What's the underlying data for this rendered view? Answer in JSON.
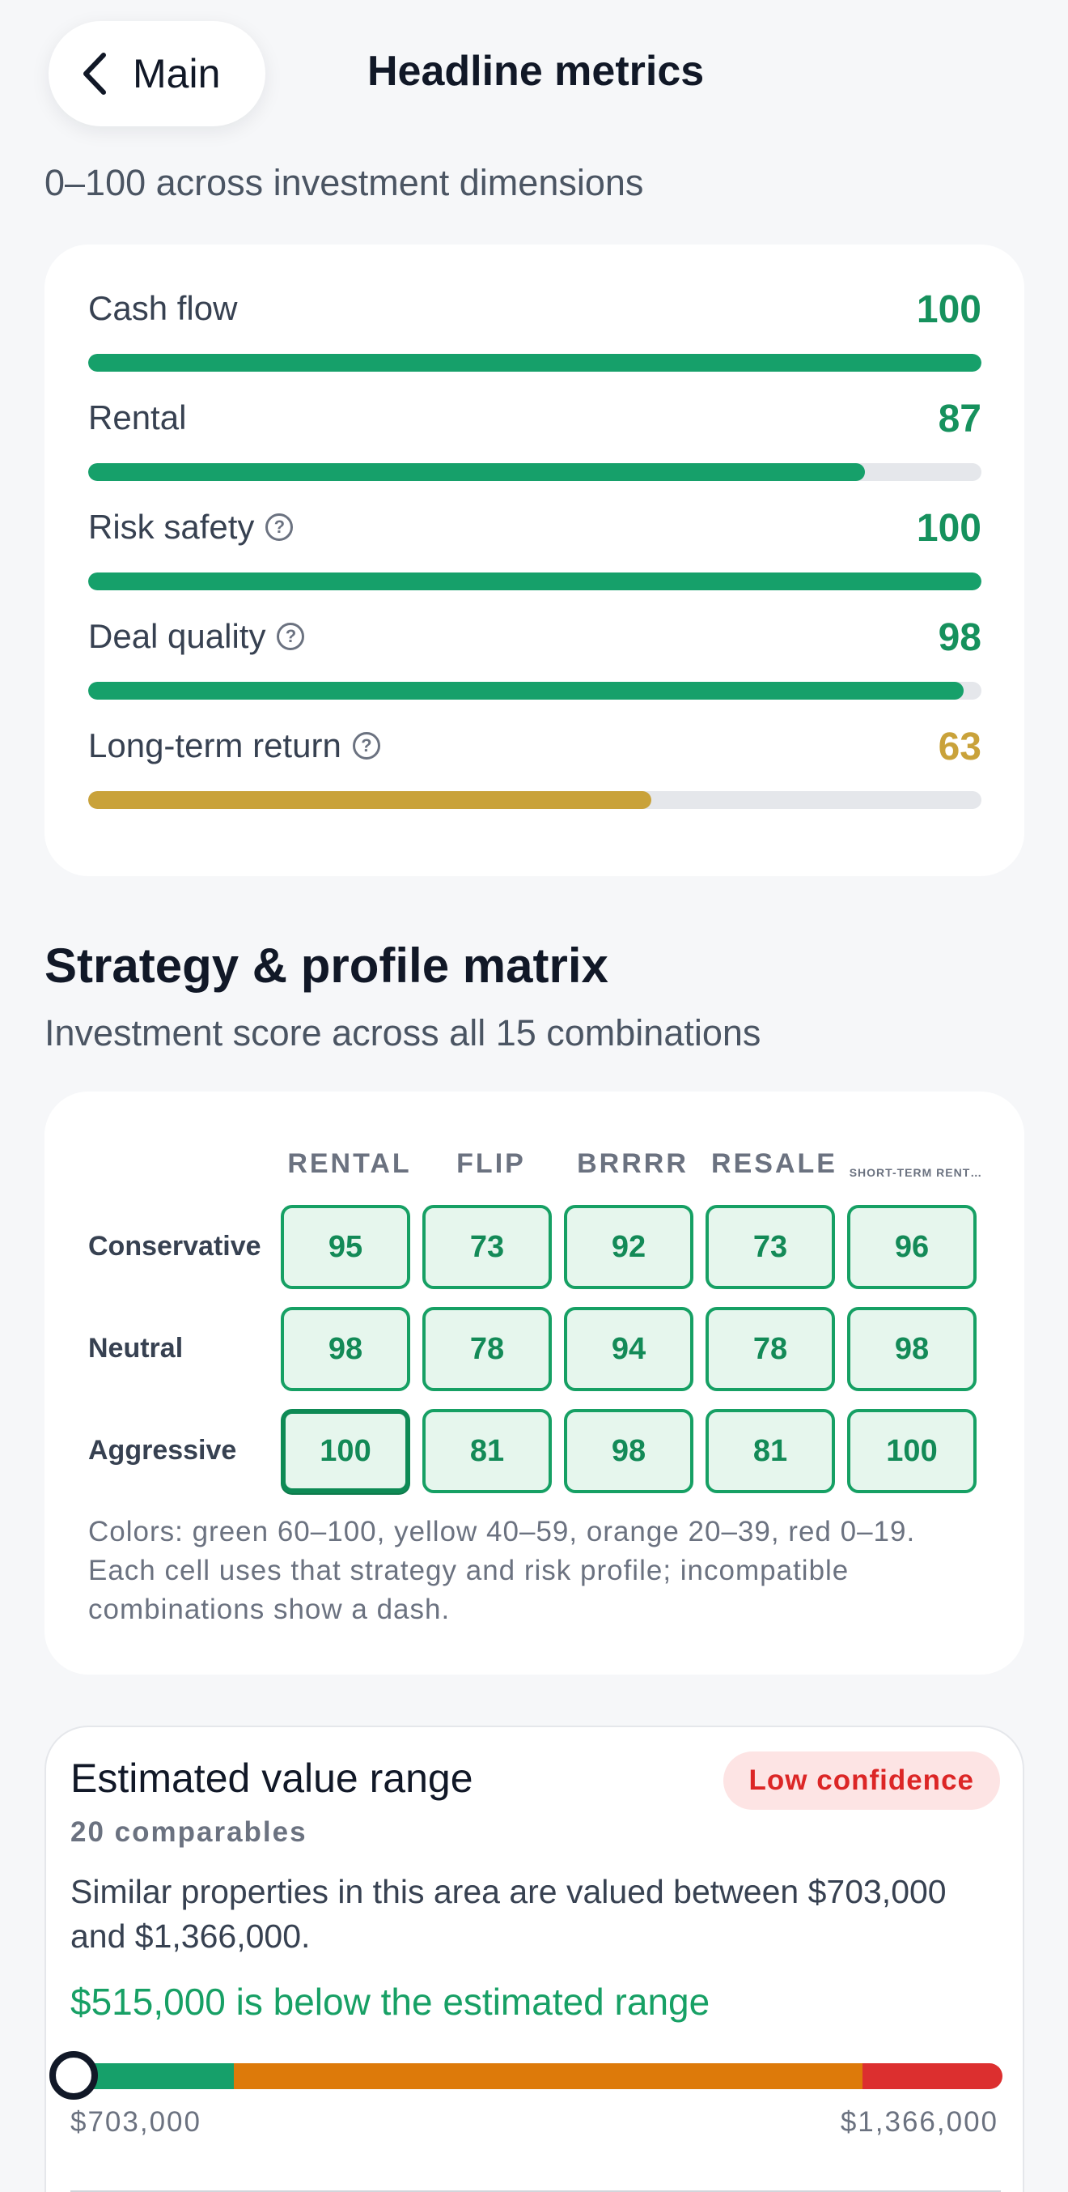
{
  "header": {
    "back_label": "Main",
    "title": "Headline metrics",
    "subtitle": "0–100 across investment dimensions"
  },
  "metrics": [
    {
      "name": "Cash flow",
      "value": 100,
      "has_help": false,
      "color": "#16a06a"
    },
    {
      "name": "Rental",
      "value": 87,
      "has_help": false,
      "color": "#16a06a"
    },
    {
      "name": "Risk safety",
      "value": 100,
      "has_help": true,
      "color": "#16a06a"
    },
    {
      "name": "Deal quality",
      "value": 98,
      "has_help": true,
      "color": "#16a06a"
    },
    {
      "name": "Long-term return",
      "value": 63,
      "has_help": true,
      "color": "#c9a23a"
    }
  ],
  "matrix": {
    "title": "Strategy & profile matrix",
    "subtitle": "Investment score across all 15 combinations",
    "columns": [
      "RENTAL",
      "FLIP",
      "BRRRR",
      "RESALE",
      "SHORT-TERM RENT…"
    ],
    "rows": [
      {
        "label": "Conservative",
        "values": [
          "95",
          "73",
          "92",
          "73",
          "96"
        ]
      },
      {
        "label": "Neutral",
        "values": [
          "98",
          "78",
          "94",
          "78",
          "98"
        ]
      },
      {
        "label": "Aggressive",
        "values": [
          "100",
          "81",
          "98",
          "81",
          "100"
        ]
      }
    ],
    "selected": {
      "row": 2,
      "col": 0
    },
    "note": "Colors: green 60–100, yellow 40–59, orange 20–39, red 0–19. Each cell uses that strategy and risk profile; incompatible combinations show a dash."
  },
  "value_range": {
    "title": "Estimated value range",
    "badge": "Low confidence",
    "comparables": "20 comparables",
    "description": "Similar properties in this area are valued between $703,000 and $1,366,000.",
    "verdict": "$515,000 is below the estimated range",
    "min_label": "$703,000",
    "max_label": "$1,366,000",
    "segments": [
      {
        "color": "#16a06a",
        "fraction": 0.175
      },
      {
        "color": "#dd7a0a",
        "fraction": 0.675
      },
      {
        "color": "#dc2f2f",
        "fraction": 0.15
      }
    ],
    "marker_fraction": 0.0
  }
}
